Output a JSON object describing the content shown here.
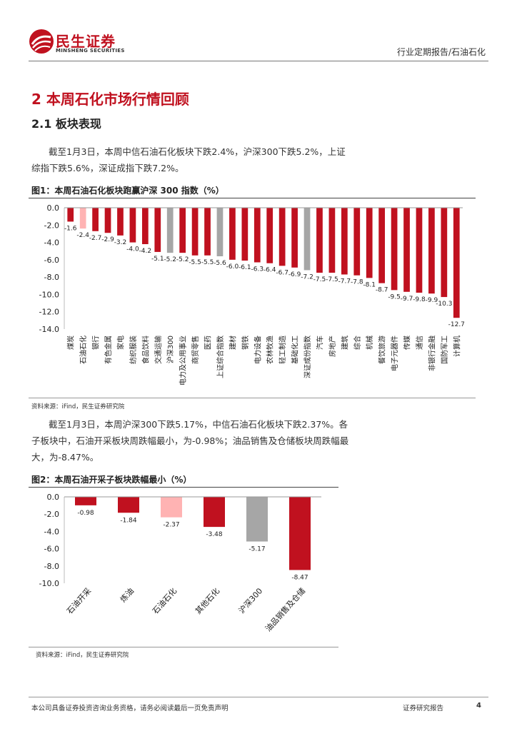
{
  "header": {
    "logo_cn": "民生证券",
    "logo_en": "MINSHENG SECURITIES",
    "category": "行业定期报告/石油石化"
  },
  "section": {
    "title": "2 本周石化市场行情回顾",
    "subtitle": "2.1 板块表现"
  },
  "paragraphs": {
    "p1": "截至1月3日，本周中信石油石化板块下跌2.4%，沪深300下跌5.2%，上证综指下跌5.6%，深证成指下跌7.2%。",
    "p2": "截至1月3日，本周沪深300下跌5.17%，中信石油石化板块下跌2.37%。各子板块中，石油开采板块周跌幅最小，为-0.98%；油品销售及仓储板块周跌幅最大，为-8.47%。"
  },
  "figure1": {
    "title": "图1：本周石油石化板块跑赢沪深 300 指数（%）",
    "source": "资料来源：iFind，民生证券研究院"
  },
  "figure2": {
    "title": "图2：本周石油开采子板块跌幅最小（%）",
    "source": "资料来源：iFind，民生证券研究院"
  },
  "footer": {
    "disclaimer": "本公司具备证券投资咨询业务资格，请务必阅读最后一页免责声明",
    "label": "证券研究报告",
    "page": "4"
  },
  "colors": {
    "brand_red": "#c0111f",
    "highlight_pink": "#ffb3b3",
    "index_gray": "#a6a6a6"
  },
  "chart_data": [
    {
      "type": "bar",
      "title": "本周石油石化板块跑赢沪深 300 指数（%）",
      "ylim": [
        -14.0,
        0.0
      ],
      "yticks": [
        "0.0",
        "-2.0",
        "-4.0",
        "-6.0",
        "-8.0",
        "-10.0",
        "-12.0",
        "-14.0"
      ],
      "grid": false,
      "categories": [
        "煤炭",
        "石油石化",
        "银行",
        "有色金属",
        "家电",
        "纺织服装",
        "食品饮料",
        "交通运输",
        "沪深300",
        "电力及公用事业",
        "商贸零售",
        "医药",
        "上证综合指数",
        "建材",
        "钢铁",
        "电力设备",
        "农林牧渔",
        "轻工制造",
        "基础化工",
        "深证成份指数",
        "汽车",
        "房地产",
        "建筑",
        "综合",
        "机械",
        "餐饮旅游",
        "电子元器件",
        "传媒",
        "通信",
        "非银行金融",
        "国防军工",
        "计算机"
      ],
      "values": [
        -1.6,
        -2.4,
        -2.7,
        -2.9,
        -3.2,
        -4.0,
        -4.2,
        -5.1,
        -5.2,
        -5.2,
        -5.5,
        -5.5,
        -5.6,
        -6.0,
        -6.1,
        -6.3,
        -6.4,
        -6.7,
        -6.9,
        -7.2,
        -7.5,
        -7.5,
        -7.7,
        -7.8,
        -8.1,
        -8.7,
        -9.5,
        -9.7,
        -9.8,
        -9.9,
        -10.3,
        -12.7
      ],
      "labels": [
        "-1.6",
        "-2.4",
        "-2.7",
        "-2.9",
        "-3.2",
        "-4.0",
        "-4.2",
        "-5.1",
        "-5.2",
        "-5.2",
        "-5.5",
        "-5.5",
        "-5.6",
        "-6.0",
        "-6.1",
        "-6.3",
        "-6.4",
        "-6.7",
        "-6.9",
        "-7.2",
        "-7.5",
        "-7.5",
        "-7.7",
        "-7.8",
        "-8.1",
        "-8.7",
        "-9.5",
        "-9.7",
        "-9.8",
        "-9.9",
        "-10.3",
        "-12.7"
      ],
      "highlight": {
        "石油石化": "pink",
        "沪深300": "gray",
        "上证综合指数": "gray",
        "深证成份指数": "gray"
      }
    },
    {
      "type": "bar",
      "title": "本周石油开采子板块跌幅最小（%）",
      "ylim": [
        -10.0,
        0.0
      ],
      "yticks": [
        "0.0",
        "-2.0",
        "-4.0",
        "-6.0",
        "-8.0",
        "-10.0"
      ],
      "grid": false,
      "categories": [
        "石油开采",
        "炼油",
        "石油石化",
        "其他石化",
        "沪深300",
        "油品销售及仓储"
      ],
      "values": [
        -0.98,
        -1.84,
        -2.37,
        -3.48,
        -5.17,
        -8.47
      ],
      "labels": [
        "-0.98",
        "-1.84",
        "-2.37",
        "-3.48",
        "-5.17",
        "-8.47"
      ],
      "highlight": {
        "石油石化": "pink",
        "沪深300": "gray"
      }
    }
  ]
}
